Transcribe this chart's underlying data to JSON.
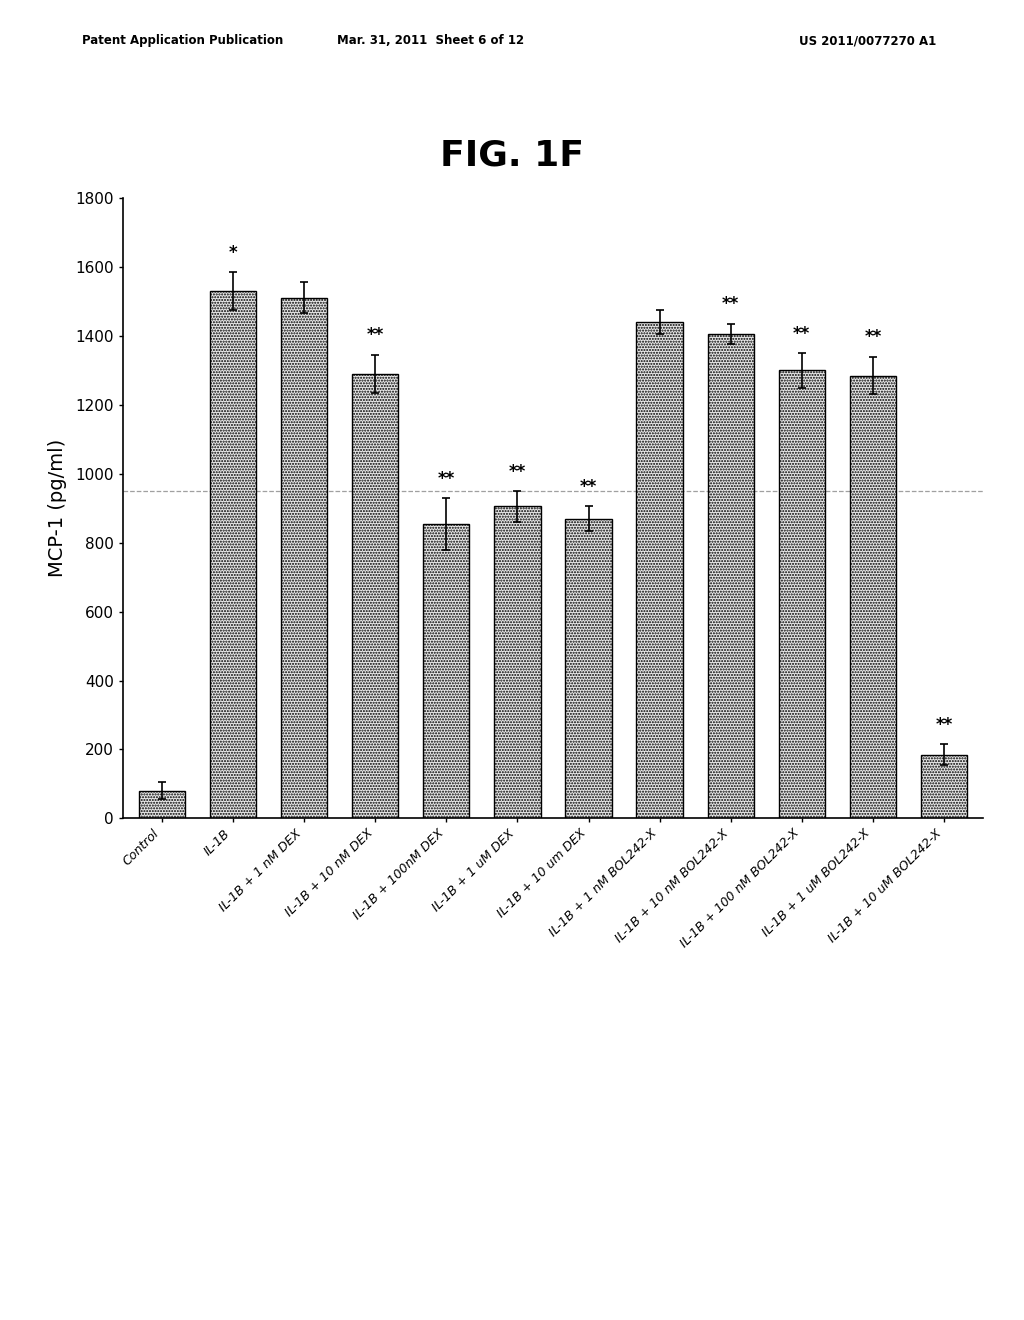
{
  "title": "FIG. 1F",
  "ylabel": "MCP-1 (pg/ml)",
  "ylim": [
    0,
    1800
  ],
  "yticks": [
    0,
    200,
    400,
    600,
    800,
    1000,
    1200,
    1400,
    1600,
    1800
  ],
  "bar_values": [
    80,
    1530,
    1510,
    1290,
    855,
    905,
    870,
    1440,
    1405,
    1300,
    1285,
    185
  ],
  "bar_errors": [
    25,
    55,
    45,
    55,
    75,
    45,
    35,
    35,
    30,
    50,
    55,
    30
  ],
  "bar_labels": [
    "Control",
    "IL-1B",
    "IL-1B + 1 nM DEX",
    "IL-1B + 10 nM DEX",
    "IL-1B + 100nM DEX",
    "IL-1B + 1 uM DEX",
    "IL-1B + 10 um DEX",
    "IL-1B + 1 nM BOL242-X",
    "IL-1B + 10 nM BOL242-X",
    "IL-1B + 100 nM BOL242-X",
    "IL-1B + 1 uM BOL242-X",
    "IL-1B + 10 uM BOL242-X"
  ],
  "significance": [
    "",
    "*",
    "",
    "**",
    "**",
    "**",
    "**",
    "",
    "**",
    "**",
    "**",
    "**"
  ],
  "bar_face_color": "#e8e8e8",
  "bar_edge_color": "#000000",
  "background_color": "#ffffff",
  "header_left": "Patent Application Publication",
  "header_mid": "Mar. 31, 2011  Sheet 6 of 12",
  "header_right": "US 2011/0077270 A1",
  "title_fontsize": 26,
  "ylabel_fontsize": 14,
  "tick_fontsize": 11,
  "sig_fontsize": 12,
  "xlabel_fontsize": 9,
  "hline_y": 950,
  "bar_width": 0.65
}
